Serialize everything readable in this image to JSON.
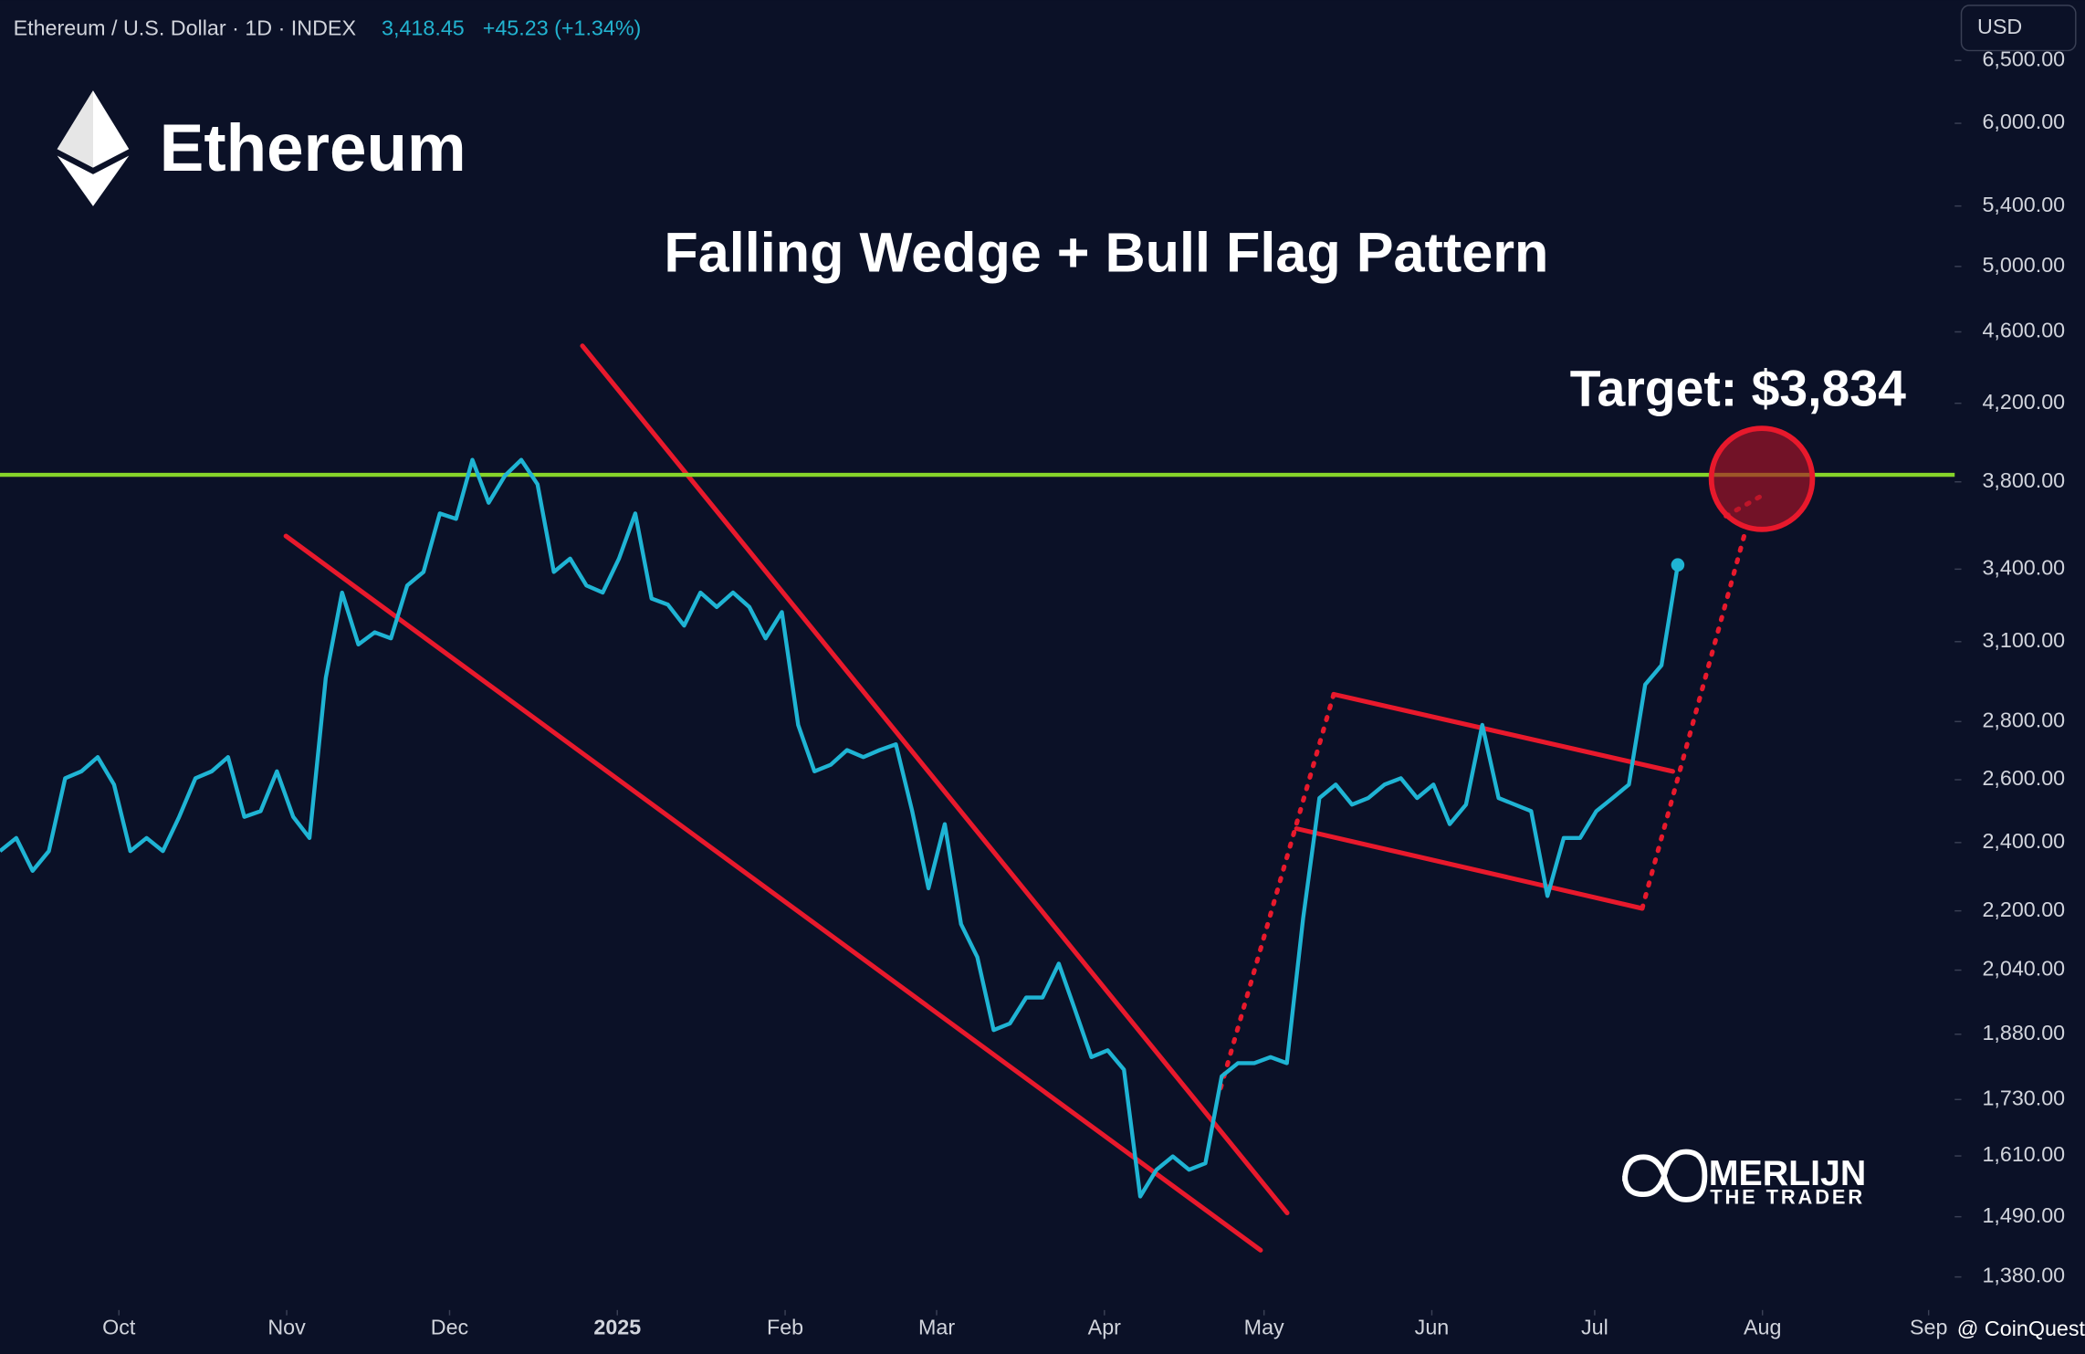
{
  "chart_data": {
    "type": "line",
    "symbol": "Ethereum / U.S. Dollar · 1D · INDEX",
    "last_price": "3,418.45",
    "change": "+45.23 (+1.34%)",
    "currency": "USD",
    "brand": "Ethereum",
    "title": "Falling Wedge + Bull Flag Pattern",
    "target_label": "Target: $3,834",
    "target_line": {
      "value": 3834,
      "color": "#86d42a"
    },
    "watermark": [
      "MERLIJN",
      "THE TRADER"
    ],
    "source": "@ CoinQuest",
    "log_scale": true,
    "xlim": [
      0,
      120
    ],
    "xticks": [
      {
        "value": 7.3,
        "label": "Oct"
      },
      {
        "value": 17.6,
        "label": "Nov"
      },
      {
        "value": 27.6,
        "label": "Dec"
      },
      {
        "value": 37.9,
        "label": "2025"
      },
      {
        "value": 48.2,
        "label": "Feb"
      },
      {
        "value": 57.5,
        "label": "Mar"
      },
      {
        "value": 67.8,
        "label": "Apr"
      },
      {
        "value": 77.6,
        "label": "May"
      },
      {
        "value": 87.9,
        "label": "Jun"
      },
      {
        "value": 97.9,
        "label": "Jul"
      },
      {
        "value": 108.2,
        "label": "Aug"
      },
      {
        "value": 118.4,
        "label": "Sep"
      }
    ],
    "ylim": [
      1323,
      7020
    ],
    "yticks": [
      {
        "value": 6500,
        "label": "6,500.00"
      },
      {
        "value": 6000,
        "label": "6,000.00"
      },
      {
        "value": 5400,
        "label": "5,400.00"
      },
      {
        "value": 5000,
        "label": "5,000.00"
      },
      {
        "value": 4600,
        "label": "4,600.00"
      },
      {
        "value": 4200,
        "label": "4,200.00"
      },
      {
        "value": 3800,
        "label": "3,800.00"
      },
      {
        "value": 3400,
        "label": "3,400.00"
      },
      {
        "value": 3100,
        "label": "3,100.00"
      },
      {
        "value": 2800,
        "label": "2,800.00"
      },
      {
        "value": 2600,
        "label": "2,600.00"
      },
      {
        "value": 2400,
        "label": "2,400.00"
      },
      {
        "value": 2200,
        "label": "2,200.00"
      },
      {
        "value": 2040,
        "label": "2,040.00"
      },
      {
        "value": 1880,
        "label": "1,880.00"
      },
      {
        "value": 1730,
        "label": "1,730.00"
      },
      {
        "value": 1610,
        "label": "1,610.00"
      },
      {
        "value": 1490,
        "label": "1,490.00"
      },
      {
        "value": 1380,
        "label": "1,380.00"
      }
    ],
    "series": [
      {
        "color": "#1fb4d4",
        "values": [
          2374,
          2414,
          2315,
          2374,
          2605,
          2628,
          2676,
          2584,
          2374,
          2414,
          2374,
          2480,
          2605,
          2628,
          2676,
          2480,
          2498,
          2628,
          2480,
          2414,
          2960,
          3300,
          3089,
          3137,
          3113,
          3330,
          3388,
          3650,
          3625,
          3908,
          3700,
          3830,
          3908,
          3788,
          3388,
          3446,
          3330,
          3300,
          3446,
          3650,
          3275,
          3250,
          3164,
          3300,
          3240,
          3300,
          3240,
          3113,
          3219,
          2788,
          2628,
          2650,
          2700,
          2676,
          2700,
          2720,
          2498,
          2264,
          2457,
          2163,
          2074,
          1890,
          1906,
          1970,
          1970,
          2057,
          1939,
          1826,
          1842,
          1797,
          1529,
          1582,
          1609,
          1582,
          1595,
          1782,
          1812,
          1812,
          1826,
          1812,
          2179,
          2540,
          2584,
          2519,
          2540,
          2584,
          2605,
          2540,
          2584,
          2457,
          2519,
          2788,
          2540,
          2519,
          2498,
          2242,
          2414,
          2414,
          2498,
          2540,
          2584,
          2935,
          3008,
          3418.45
        ]
      }
    ]
  }
}
